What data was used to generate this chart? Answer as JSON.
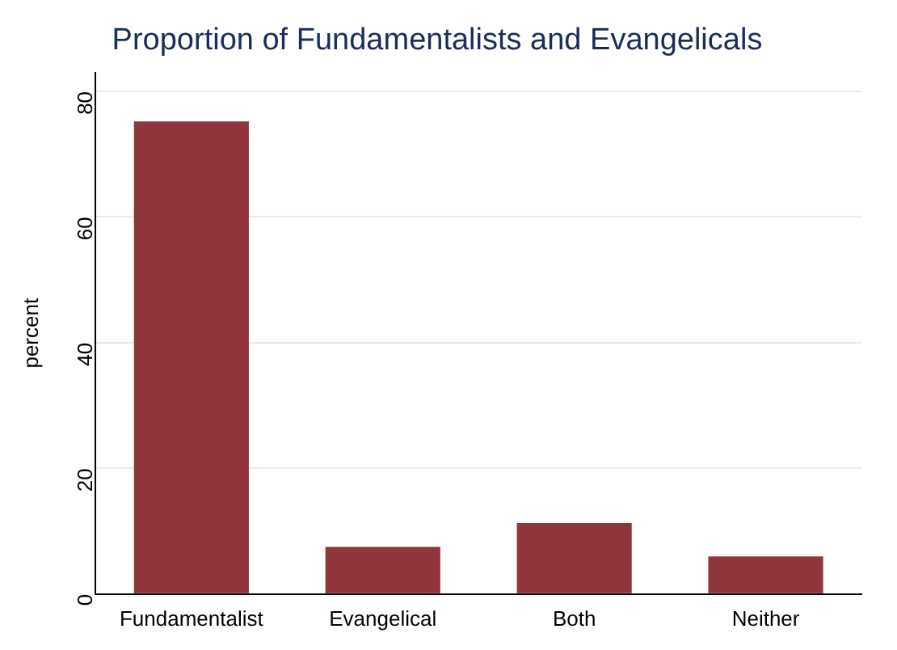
{
  "chart_data": {
    "type": "bar",
    "title": "Proportion of Fundamentalists and Evangelicals",
    "ylabel": "percent",
    "categories": [
      "Fundamentalist",
      "Evangelical",
      "Both",
      "Neither"
    ],
    "values": [
      75.2,
      7.5,
      11.3,
      6.0
    ],
    "color": "#90353b",
    "ylim": [
      0,
      83
    ],
    "yticks": [
      0,
      20,
      40,
      60,
      80
    ],
    "grid": "y",
    "legend": false
  }
}
